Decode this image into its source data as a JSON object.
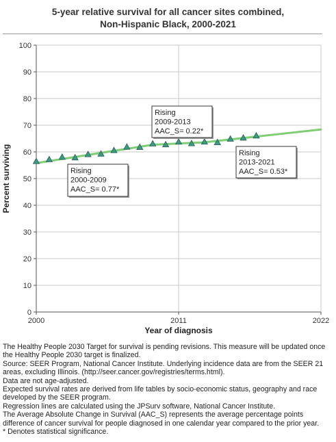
{
  "chart_data": {
    "type": "line",
    "title_line1": "5-year relative survival for all cancer sites combined,",
    "title_line2": "Non-Hispanic Black,  2000-2021",
    "xlabel": "Year of diagnosis",
    "ylabel": "Percent surviving",
    "xlim": [
      2000,
      2022
    ],
    "ylim": [
      0,
      100
    ],
    "x_ticks": [
      "2000",
      "2011",
      "2022"
    ],
    "y_ticks": [
      "0",
      "10",
      "20",
      "30",
      "40",
      "50",
      "60",
      "70",
      "80",
      "90",
      "100"
    ],
    "grid": true,
    "observed": {
      "marker": "triangle",
      "color": "#3a9a84",
      "x": [
        2000,
        2001,
        2002,
        2003,
        2004,
        2005,
        2006,
        2007,
        2008,
        2009,
        2010,
        2011,
        2012,
        2013,
        2014,
        2015,
        2016,
        2017
      ],
      "y": [
        56.5,
        57.2,
        58.1,
        57.9,
        59.1,
        59.3,
        60.6,
        61.9,
        61.8,
        63.1,
        62.8,
        63.8,
        63.2,
        63.8,
        63.6,
        64.9,
        65.3,
        66.1
      ]
    },
    "trend": {
      "color": "#7ecf73",
      "segments": [
        {
          "x": [
            2000,
            2009
          ],
          "y": [
            55.8,
            62.7
          ]
        },
        {
          "x": [
            2009,
            2013
          ],
          "y": [
            62.7,
            63.6
          ]
        },
        {
          "x": [
            2013,
            2022
          ],
          "y": [
            63.6,
            68.4
          ]
        }
      ]
    },
    "annotations": [
      {
        "line1": "Rising",
        "line2": "2000-2009",
        "line3": "AAC_S=  0.77*"
      },
      {
        "line1": "Rising",
        "line2": "2009-2013",
        "line3": "AAC_S=  0.22*"
      },
      {
        "line1": "Rising",
        "line2": "2013-2021",
        "line3": "AAC_S=  0.53*"
      }
    ]
  },
  "notes": [
    "The Healthy People 2030 Target for survival is pending revisions. This measure will be updated once the Healthy People 2030 target is finalized.",
    "Source: SEER Program, National Cancer Institute. Underlying incidence data are from the SEER 21 areas, excluding Illinois. (http://seer.cancer.gov/registries/terms.html).",
    "Data are not age-adjusted.",
    "Expected survival rates are derived from life tables by socio-economic status, geography and race developed by the SEER program.",
    "Regression lines are calculated using the JPSurv software, National Cancer Institute.",
    "The Average Absolute Change in Survival (AAC_S) represents the average percentage points difference of cancer survival for people diagnosed in one calendar year compared to the prior year.",
    "* Denotes statistical significance."
  ]
}
